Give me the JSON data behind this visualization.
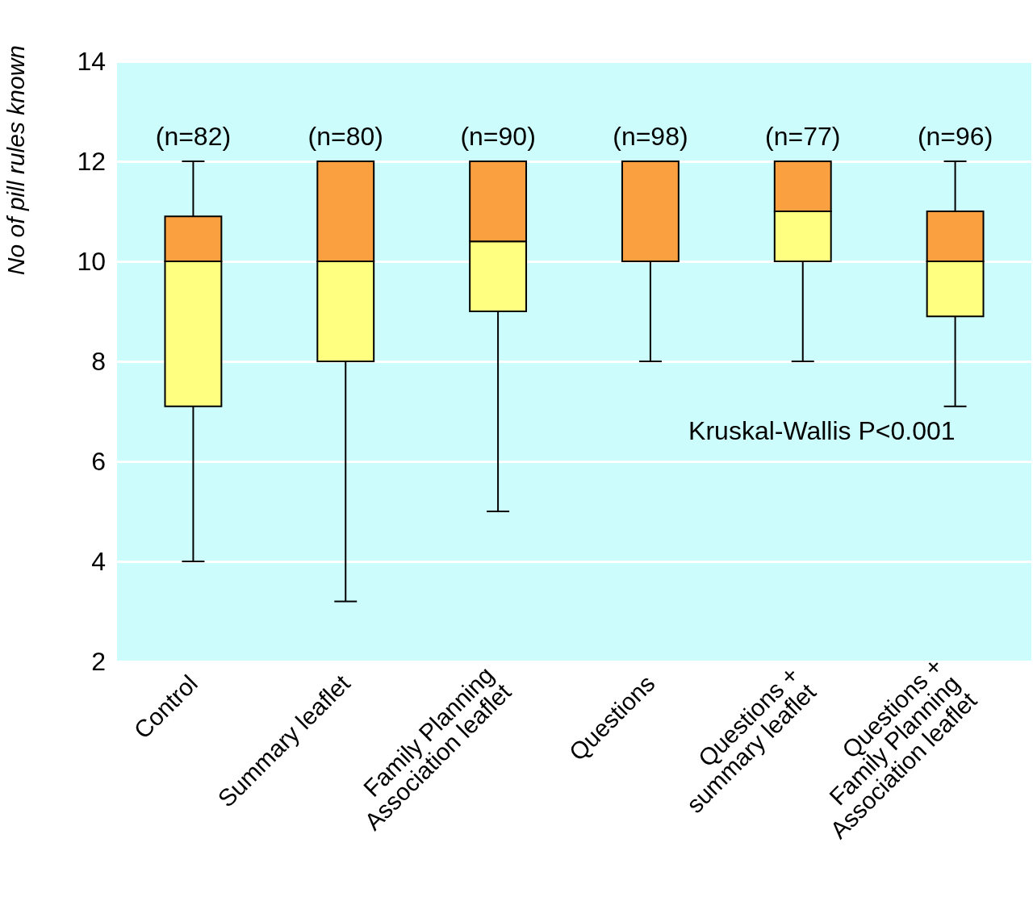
{
  "chart_data": {
    "type": "box",
    "ylabel": "No of pill rules known",
    "categories": [
      "Control",
      "Summary leaflet",
      "Family Planning\nAssociation leaflet",
      "Questions",
      "Questions +\nsummary leaflet",
      "Questions +\nFamily Planning\nAssociation leaflet"
    ],
    "series": [
      {
        "color": "#fba040",
        "colors": [
          "#ffff80",
          "#ffff80",
          "#ffff80",
          null,
          "#ffff80",
          "#ffff80"
        ],
        "boxes": [
          {
            "low": 4,
            "q1": 7.1,
            "median": 10,
            "q3": 10.9,
            "high": 12
          },
          {
            "low": 3.2,
            "q1": 8,
            "median": 10,
            "q3": 12,
            "high": 12
          },
          {
            "low": 5,
            "q1": 9,
            "median": 10.4,
            "q3": 12,
            "high": 12
          },
          {
            "low": 8,
            "q1": 10,
            "median": 10,
            "q3": 12,
            "high": 12
          },
          {
            "low": 8,
            "q1": 10,
            "median": 11,
            "q3": 12,
            "high": 12
          },
          {
            "low": 7.1,
            "q1": 8.9,
            "median": 10,
            "q3": 11,
            "high": 12
          }
        ]
      }
    ],
    "ylim": [
      2,
      14
    ],
    "yticks": [
      2,
      4,
      6,
      8,
      10,
      12,
      14
    ],
    "grid": "y",
    "annotations": [
      "(n=82)",
      "(n=80)",
      "(n=90)",
      "(n=98)",
      "(n=77)",
      "(n=96)",
      "Kruskal-Wallis P<0.001"
    ]
  }
}
